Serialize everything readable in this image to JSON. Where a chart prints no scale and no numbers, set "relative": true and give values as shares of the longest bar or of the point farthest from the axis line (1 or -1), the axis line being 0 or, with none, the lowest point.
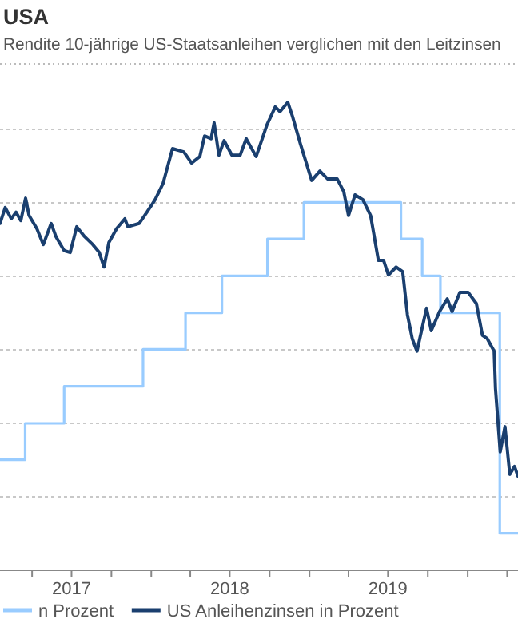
{
  "chart_data": {
    "type": "line",
    "title": "USA",
    "subtitle": "Rendite 10-jährige US-Staatsanleihen verglichen mit den Leitzinsen",
    "relative": true,
    "grid": "y",
    "legend": "bottom",
    "line_style": "solid",
    "marker": "none",
    "xlim": [
      "2017-01-17",
      "2020-04-26"
    ],
    "xticks": [
      {
        "value": "2017-04-01",
        "label": null
      },
      {
        "value": "2017-07-01",
        "label": "2017"
      },
      {
        "value": "2017-10-01",
        "label": null
      },
      {
        "value": "2018-01-01",
        "label": null
      },
      {
        "value": "2018-04-01",
        "label": null
      },
      {
        "value": "2018-07-01",
        "label": "2018"
      },
      {
        "value": "2018-10-01",
        "label": null
      },
      {
        "value": "2019-01-01",
        "label": null
      },
      {
        "value": "2019-04-01",
        "label": null
      },
      {
        "value": "2019-07-01",
        "label": "2019"
      },
      {
        "value": "2019-10-01",
        "label": null
      },
      {
        "value": "2020-01-01",
        "label": null
      },
      {
        "value": "2020-04-01",
        "label": null
      }
    ],
    "series": [
      {
        "type": "step",
        "name": "n Prozent",
        "color": "#99ccff",
        "x": [
          "2017-01-17",
          "2017-03-16",
          "2017-06-14",
          "2017-12-13",
          "2018-03-21",
          "2018-06-13",
          "2018-09-26",
          "2018-12-19",
          "2019-07-31",
          "2019-09-18",
          "2019-10-30",
          "2020-03-15",
          "2020-04-26"
        ],
        "values": [
          0.236,
          0.314,
          0.393,
          0.472,
          0.55,
          0.629,
          0.708,
          0.786,
          0.708,
          0.629,
          0.55,
          0.079,
          0.079
        ]
      },
      {
        "type": "line",
        "name": "US Anleihenzinsen in Prozent",
        "color": "#1a3f6f",
        "x": [
          "2017-01-17",
          "2017-01-29",
          "2017-02-12",
          "2017-02-23",
          "2017-03-06",
          "2017-03-17",
          "2017-03-25",
          "2017-04-12",
          "2017-04-27",
          "2017-05-15",
          "2017-05-26",
          "2017-06-14",
          "2017-06-28",
          "2017-07-13",
          "2017-07-31",
          "2017-08-19",
          "2017-09-03",
          "2017-09-14",
          "2017-09-25",
          "2017-10-13",
          "2017-11-01",
          "2017-11-08",
          "2017-12-04",
          "2017-12-22",
          "2018-01-10",
          "2018-01-28",
          "2018-02-19",
          "2018-03-17",
          "2018-04-04",
          "2018-04-23",
          "2018-05-04",
          "2018-05-19",
          "2018-05-26",
          "2018-06-06",
          "2018-06-18",
          "2018-07-06",
          "2018-07-25",
          "2018-08-08",
          "2018-08-31",
          "2018-09-25",
          "2018-10-14",
          "2018-10-25",
          "2018-11-12",
          "2018-11-23",
          "2018-12-11",
          "2019-01-06",
          "2019-01-25",
          "2019-02-12",
          "2019-03-06",
          "2019-03-21",
          "2019-04-01",
          "2019-04-16",
          "2019-05-04",
          "2019-05-22",
          "2019-06-09",
          "2019-06-21",
          "2019-07-02",
          "2019-07-20",
          "2019-08-04",
          "2019-08-15",
          "2019-08-26",
          "2019-09-06",
          "2019-09-28",
          "2019-10-09",
          "2019-10-28",
          "2019-11-15",
          "2019-11-26",
          "2019-12-14",
          "2020-01-02",
          "2020-01-21",
          "2020-02-04",
          "2020-02-15",
          "2020-03-02",
          "2020-03-05",
          "2020-03-16",
          "2020-03-27",
          "2020-04-07",
          "2020-04-18",
          "2020-04-26"
        ],
        "values": [
          0.741,
          0.775,
          0.751,
          0.765,
          0.747,
          0.795,
          0.758,
          0.73,
          0.696,
          0.741,
          0.713,
          0.683,
          0.679,
          0.734,
          0.713,
          0.696,
          0.679,
          0.648,
          0.7,
          0.73,
          0.751,
          0.734,
          0.741,
          0.765,
          0.792,
          0.826,
          0.901,
          0.894,
          0.87,
          0.884,
          0.928,
          0.922,
          0.956,
          0.887,
          0.918,
          0.887,
          0.887,
          0.922,
          0.884,
          0.952,
          0.99,
          0.98,
          1,
          0.969,
          0.911,
          0.833,
          0.853,
          0.836,
          0.836,
          0.809,
          0.758,
          0.802,
          0.792,
          0.758,
          0.662,
          0.662,
          0.631,
          0.648,
          0.638,
          0.546,
          0.495,
          0.468,
          0.56,
          0.512,
          0.553,
          0.58,
          0.553,
          0.594,
          0.594,
          0.57,
          0.502,
          0.495,
          0.468,
          0.389,
          0.253,
          0.307,
          0.205,
          0.222,
          0.201
        ]
      }
    ]
  }
}
